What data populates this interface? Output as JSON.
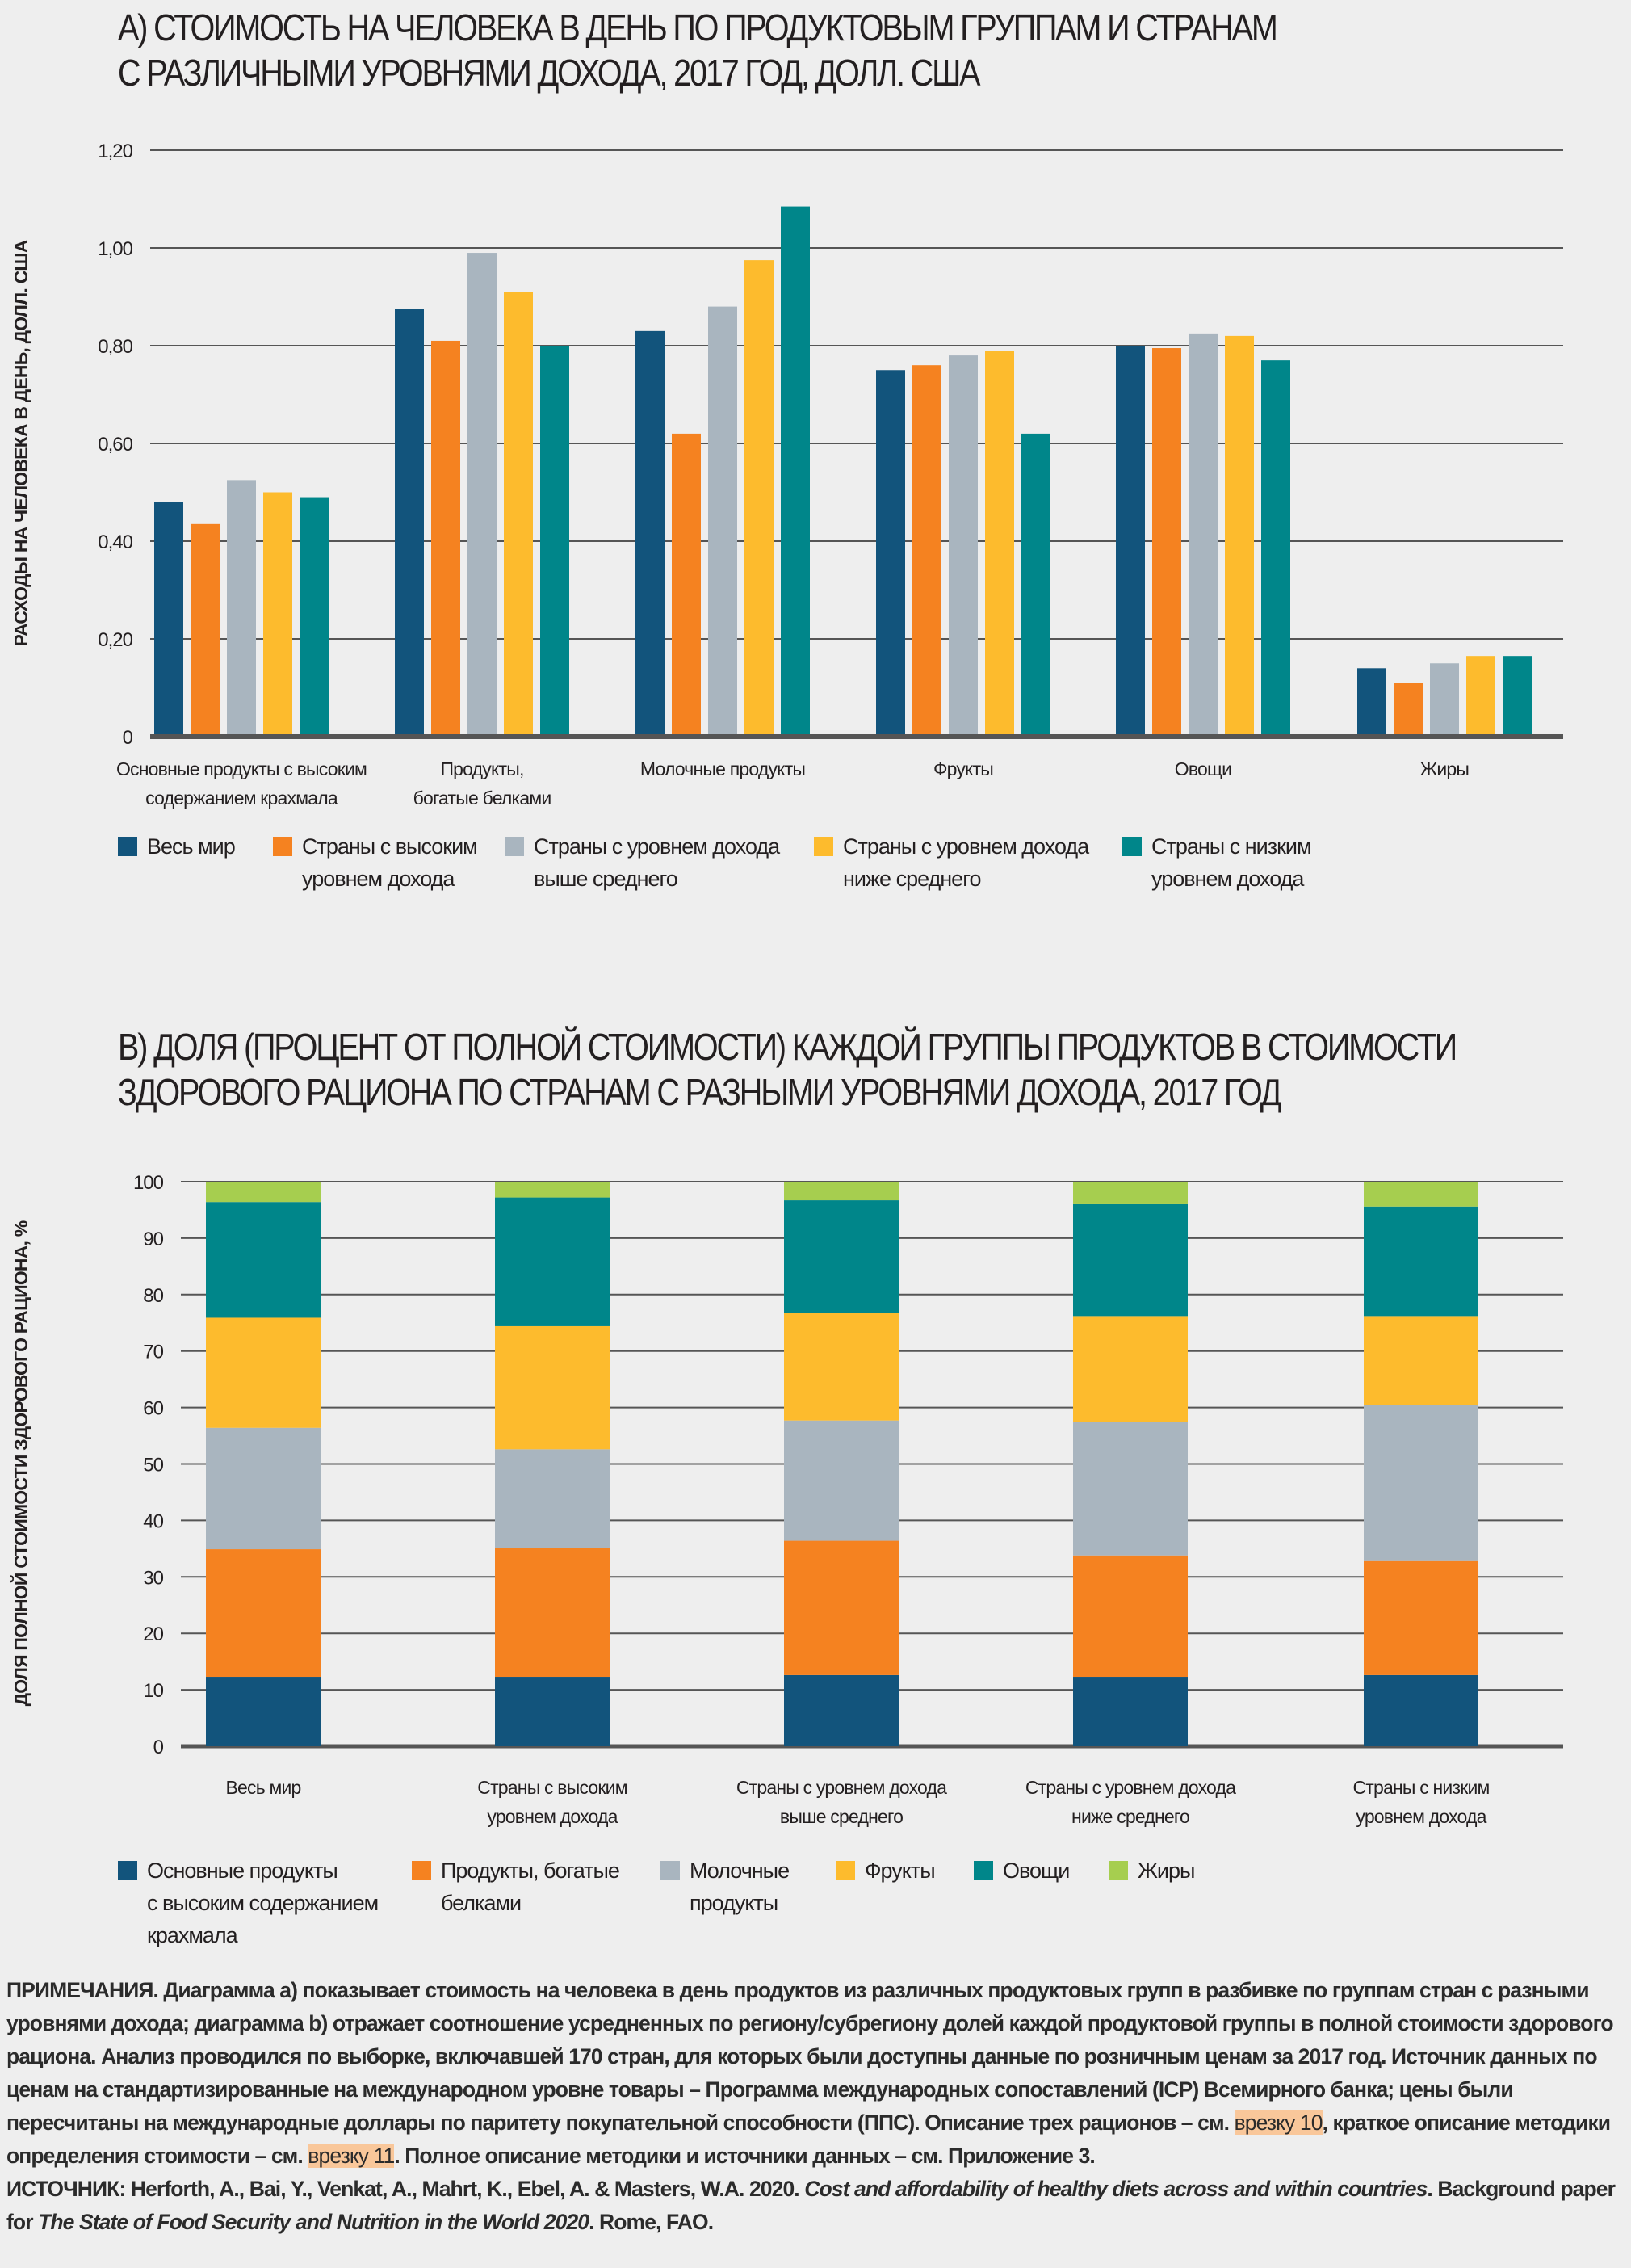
{
  "colors": {
    "background": "#eeeeee",
    "world": "#12547c",
    "high": "#f58220",
    "upper_middle": "#a9b5bf",
    "lower_middle": "#fdbb2d",
    "low": "#00868a",
    "fats": "#a6ce4f",
    "highlight": "#f9c79a"
  },
  "chart_data": [
    {
      "type": "bar",
      "title": [
        "A) СТОИМОСТЬ НА ЧЕЛОВЕКА В ДЕНЬ ПО ПРОДУКТОВЫМ ГРУППАМ И СТРАНАМ",
        "С РАЗЛИЧНЫМИ УРОВНЯМИ ДОХОДА, 2017 ГОД, ДОЛЛ. США"
      ],
      "ylabel": "РАСХОДЫ НА ЧЕЛОВЕКА В ДЕНЬ, ДОЛЛ. США",
      "xlabel": "",
      "ylim": [
        0,
        1.2
      ],
      "yticks": [
        "0",
        "0,20",
        "0,40",
        "0,60",
        "0,80",
        "1,00",
        "1,20"
      ],
      "grid": true,
      "legend_placement": "bottom",
      "categories": [
        [
          "Основные продукты с высоким",
          "содержанием крахмала"
        ],
        [
          "Продукты,",
          "богатые белками"
        ],
        [
          "Молочные продукты"
        ],
        [
          "Фрукты"
        ],
        [
          "Овощи"
        ],
        [
          "Жиры"
        ]
      ],
      "series": [
        {
          "name": [
            "Весь мир"
          ],
          "values": [
            0.48,
            0.875,
            0.83,
            0.75,
            0.8,
            0.14
          ]
        },
        {
          "name": [
            "Страны с высоким",
            "уровнем дохода"
          ],
          "values": [
            0.435,
            0.81,
            0.62,
            0.76,
            0.795,
            0.11
          ]
        },
        {
          "name": [
            "Страны с уровнем дохода",
            "выше среднего"
          ],
          "values": [
            0.525,
            0.99,
            0.88,
            0.78,
            0.825,
            0.15
          ]
        },
        {
          "name": [
            "Страны с уровнем дохода",
            "ниже среднего"
          ],
          "values": [
            0.5,
            0.91,
            0.975,
            0.79,
            0.82,
            0.165
          ]
        },
        {
          "name": [
            "Страны с низким",
            "уровнем дохода"
          ],
          "values": [
            0.49,
            0.8,
            1.085,
            0.62,
            0.77,
            0.165
          ]
        }
      ]
    },
    {
      "type": "stacked-bar",
      "title": [
        "B) ДОЛЯ (ПРОЦЕНТ ОТ ПОЛНОЙ СТОИМОСТИ) КАЖДОЙ ГРУППЫ ПРОДУКТОВ В СТОИМОСТИ",
        "ЗДОРОВОГО РАЦИОНА ПО СТРАНАМ С РАЗНЫМИ УРОВНЯМИ ДОХОДА, 2017 ГОД"
      ],
      "ylabel": "ДОЛЯ ПОЛНОЙ СТОИМОСТИ ЗДОРОВОГО РАЦИОНА, %",
      "xlabel": "",
      "ylim": [
        0,
        100
      ],
      "yticks": [
        "0",
        "10",
        "20",
        "30",
        "40",
        "50",
        "60",
        "70",
        "80",
        "90",
        "100"
      ],
      "grid": true,
      "legend_placement": "bottom",
      "categories": [
        [
          "Весь мир"
        ],
        [
          "Страны с высоким",
          "уровнем дохода"
        ],
        [
          "Страны с уровнем дохода",
          "выше среднего"
        ],
        [
          "Страны с уровнем дохода",
          "ниже среднего"
        ],
        [
          "Страны с низким",
          "уровнем дохода"
        ]
      ],
      "series": [
        {
          "name": [
            "Основные продукты",
            "с высоким содержанием",
            "крахмала"
          ],
          "values": [
            12.3,
            12.3,
            12.6,
            12.3,
            12.6
          ]
        },
        {
          "name": [
            "Продукты, богатые",
            "белками"
          ],
          "values": [
            22.6,
            22.8,
            23.8,
            21.5,
            20.2
          ]
        },
        {
          "name": [
            "Молочные",
            "продукты"
          ],
          "values": [
            21.5,
            17.5,
            21.3,
            23.6,
            27.7
          ]
        },
        {
          "name": [
            "Фрукты"
          ],
          "values": [
            19.5,
            21.8,
            19.0,
            18.8,
            15.7
          ]
        },
        {
          "name": [
            "Овощи"
          ],
          "values": [
            20.5,
            22.8,
            20.0,
            19.8,
            19.4
          ]
        },
        {
          "name": [
            "Жиры"
          ],
          "values": [
            3.6,
            2.8,
            3.3,
            4.0,
            4.4
          ]
        }
      ]
    }
  ],
  "notes": {
    "p1": "ПРИМЕЧАНИЯ. Диаграмма a) показывает стоимость на человека в день продуктов из различных продуктовых групп в разбивке по группам стран с разными уровнями дохода; диаграмма b) отражает соотношение усредненных по региону/субрегиону долей каждой продуктовой группы в полной стоимости здорового рациона. Анализ проводился по выборке, включавшей 170 стран, для которых были доступны данные по розничным ценам за 2017 год. Источник данных по ценам на стандартизированные на международном уровне товары – Программа международных сопоставлений (ICP) Всемирного банка; цены были пересчитаны на международные доллары по паритету покупательной способности (ППС). Описание трех рационов – см. ",
    "link1": "врезку 10",
    "p2": ", краткое описание методики определения стоимости – см. ",
    "link2": "врезку 11",
    "p3": ". Полное описание методики и источники данных – см. Приложение 3.",
    "source_prefix": "ИСТОЧНИК: Herforth, A., Bai, Y., Venkat, A., Mahrt, K., Ebel, A. & Masters, W.A. 2020. ",
    "source_title": "Cost and affordability of healthy diets across and within countries",
    "source_mid": ". Background paper for ",
    "source_report": "The State of Food Security and Nutrition in the World 2020",
    "source_suffix": ". Rome, FAO."
  }
}
